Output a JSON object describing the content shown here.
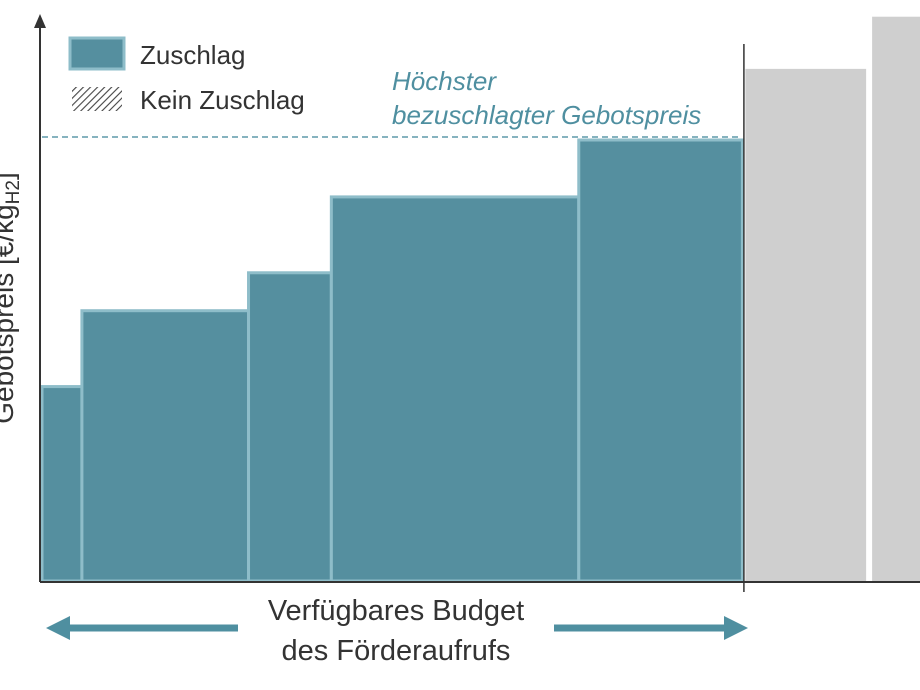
{
  "chart_data": {
    "type": "bar",
    "variant": "merit-order-variable-width",
    "ylabel": "Gebotspreis [€/kg",
    "ylabel_subscript": "H2",
    "ylabel_suffix": "]",
    "legend": [
      {
        "label": "Zuschlag",
        "style": "solid",
        "color": "#558f9f"
      },
      {
        "label": "Kein Zuschlag",
        "style": "hatched",
        "color": "#555555"
      }
    ],
    "annotation": {
      "lines": [
        "Höchster",
        "bezuschlagter Gebotspreis"
      ],
      "value": 0.93,
      "line_style": "dashed",
      "color": "#4f8fa0"
    },
    "budget_label": {
      "lines": [
        "Verfügbares Budget",
        "des Förderaufrufs"
      ]
    },
    "budget_end_x": 702,
    "x_max": 880,
    "y_max": 1.0,
    "series": [
      {
        "name": "Zuschlag",
        "color": "#558f9f",
        "bars": [
          {
            "x0": 0,
            "x1": 40,
            "value": 0.41
          },
          {
            "x0": 40,
            "x1": 207,
            "value": 0.57
          },
          {
            "x0": 207,
            "x1": 290,
            "value": 0.65
          },
          {
            "x0": 290,
            "x1": 538,
            "value": 0.81
          },
          {
            "x0": 538,
            "x1": 702,
            "value": 0.93
          }
        ]
      },
      {
        "name": "Kein Zuschlag",
        "color": "#cfcfcf",
        "bars": [
          {
            "x0": 705,
            "x1": 826,
            "value": 1.08
          },
          {
            "x0": 832,
            "x1": 880,
            "value": 1.19
          }
        ]
      }
    ],
    "grid": false
  }
}
